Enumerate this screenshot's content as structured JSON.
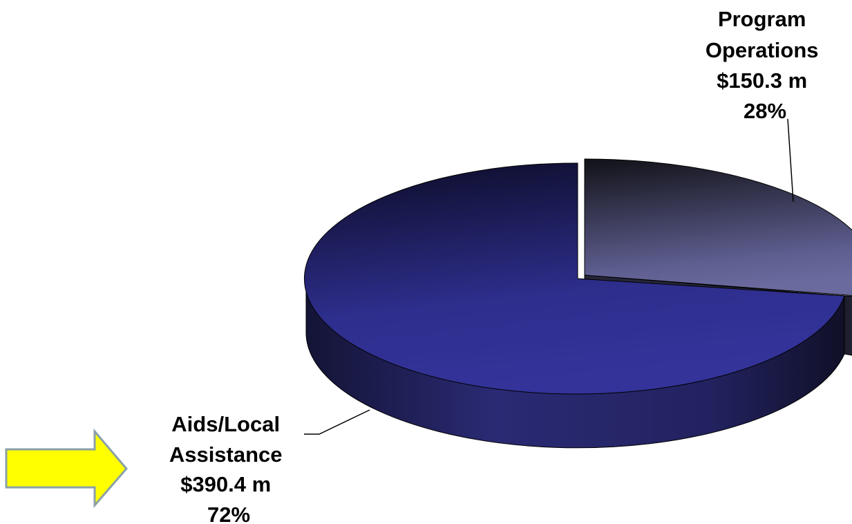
{
  "chart_data": {
    "type": "pie",
    "style": "3d-exploded",
    "title": "",
    "slices": [
      {
        "label": "Aids/Local Assistance",
        "amount": "$390.4 m",
        "value": 390.4,
        "percent": "72%"
      },
      {
        "label": "Program Operations",
        "amount": "$150.3 m",
        "value": 150.3,
        "percent": "28%"
      }
    ],
    "label_lines": {
      "aids": [
        "Aids/Local",
        "Assistance",
        "$390.4 m",
        "72%"
      ],
      "ops": [
        "Program",
        "Operations",
        "$150.3 m",
        "28%"
      ]
    },
    "colors": {
      "aids_top": "#2e2e8e",
      "aids_top_dark": "#0c0c26",
      "aids_side": "#26265e",
      "ops_top": "#5e5e90",
      "ops_top_dark": "#121218",
      "ops_side": "#2e2e42",
      "arrow_fill": "#ffff00",
      "arrow_stroke": "#8aa0a8"
    }
  }
}
